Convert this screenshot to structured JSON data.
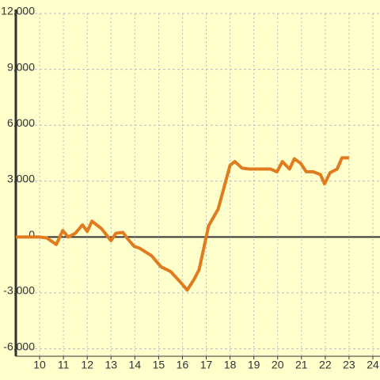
{
  "chart_data": {
    "type": "line",
    "x": [
      9,
      10,
      10.3,
      10.7,
      10.97,
      11.2,
      11.5,
      11.8,
      12,
      12.2,
      12.6,
      13,
      13.2,
      13.5,
      13.7,
      13.97,
      14.2,
      14.7,
      15.1,
      15.5,
      15.9,
      16.2,
      16.5,
      16.7,
      17.1,
      17.5,
      18,
      18.2,
      18.5,
      18.8,
      19.3,
      19.7,
      19.97,
      20.2,
      20.5,
      20.7,
      20.97,
      21.2,
      21.5,
      21.8,
      21.97,
      22.2,
      22.5,
      22.7,
      23
    ],
    "series": [
      {
        "color": "#e07b20",
        "values": [
          0,
          0,
          -50,
          -400,
          350,
          0,
          200,
          650,
          300,
          850,
          450,
          -200,
          200,
          250,
          -100,
          -500,
          -600,
          -1000,
          -1600,
          -1850,
          -2400,
          -2850,
          -2250,
          -1750,
          600,
          1500,
          3850,
          4050,
          3700,
          3650,
          3650,
          3650,
          3500,
          4050,
          3650,
          4200,
          3950,
          3500,
          3500,
          3350,
          2850,
          3450,
          3650,
          4250,
          4250
        ]
      }
    ],
    "xlim": [
      9,
      24.3
    ],
    "ylim": [
      -6400,
      12000
    ],
    "xticks": [
      10,
      11,
      12,
      13,
      14,
      15,
      16,
      17,
      18,
      19,
      20,
      21,
      22,
      23,
      24
    ],
    "yticks": [
      {
        "value": -6000,
        "label": "-6,000"
      },
      {
        "value": -3000,
        "label": "-3,000"
      },
      0,
      {
        "value": 3000,
        "label": "3,000"
      },
      {
        "value": 6000,
        "label": "6,000"
      },
      {
        "value": 9000,
        "label": "9,000"
      },
      {
        "value": 12000,
        "label": "12,000"
      }
    ],
    "grid": true
  }
}
